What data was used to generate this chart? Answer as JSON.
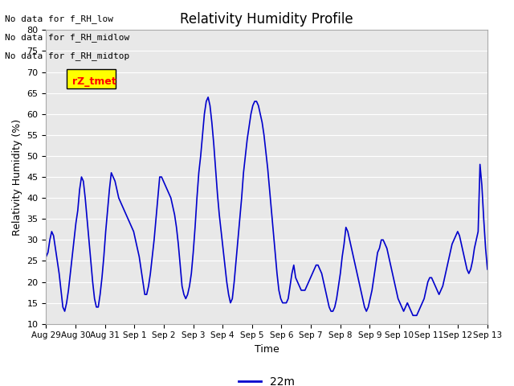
{
  "title": "Relativity Humidity Profile",
  "xlabel": "Time",
  "ylabel": "Relativity Humidity (%)",
  "ylim": [
    10,
    80
  ],
  "yticks": [
    10,
    15,
    20,
    25,
    30,
    35,
    40,
    45,
    50,
    55,
    60,
    65,
    70,
    75,
    80
  ],
  "line_color": "#0000CC",
  "line_width": 1.2,
  "legend_label": "22m",
  "no_data_labels": [
    "No data for f_RH_low",
    "No data for f_RH_midlow",
    "No data for f_RH_midtop"
  ],
  "legend_box_color": "#FFFF00",
  "legend_text_color": "#FF0000",
  "legend_box_label": "rZ_tmet",
  "xtick_labels": [
    "Aug 29",
    "Aug 30",
    "Aug 31",
    "Sep 1",
    "Sep 2",
    "Sep 3",
    "Sep 4",
    "Sep 5",
    "Sep 6",
    "Sep 7",
    "Sep 8",
    "Sep 9",
    "Sep 10",
    "Sep 11",
    "Sep 12",
    "Sep 13"
  ],
  "bg_color": "#E8E8E8",
  "grid_color": "#FFFFFF",
  "figure_bg": "#FFFFFF",
  "rh_values": [
    26,
    27,
    30,
    32,
    31,
    28,
    25,
    22,
    18,
    14,
    13,
    15,
    18,
    22,
    26,
    30,
    34,
    37,
    42,
    45,
    44,
    40,
    35,
    30,
    25,
    20,
    16,
    14,
    14,
    17,
    21,
    26,
    32,
    37,
    42,
    46,
    45,
    44,
    42,
    40,
    39,
    38,
    37,
    36,
    35,
    34,
    33,
    32,
    30,
    28,
    26,
    23,
    20,
    17,
    17,
    19,
    22,
    26,
    30,
    35,
    40,
    45,
    45,
    44,
    43,
    42,
    41,
    40,
    38,
    36,
    33,
    29,
    24,
    19,
    17,
    16,
    17,
    19,
    22,
    27,
    33,
    40,
    46,
    50,
    55,
    60,
    63,
    64,
    62,
    58,
    53,
    47,
    41,
    36,
    32,
    28,
    24,
    20,
    17,
    15,
    16,
    20,
    25,
    30,
    35,
    40,
    46,
    50,
    54,
    57,
    60,
    62,
    63,
    63,
    62,
    60,
    58,
    55,
    51,
    47,
    42,
    37,
    32,
    27,
    22,
    18,
    16,
    15,
    15,
    15,
    16,
    19,
    22,
    24,
    21,
    20,
    19,
    18,
    18,
    18,
    19,
    20,
    21,
    22,
    23,
    24,
    24,
    23,
    22,
    20,
    18,
    16,
    14,
    13,
    13,
    14,
    16,
    19,
    22,
    26,
    29,
    33,
    32,
    30,
    28,
    26,
    24,
    22,
    20,
    18,
    16,
    14,
    13,
    14,
    16,
    18,
    21,
    24,
    27,
    28,
    30,
    30,
    29,
    28,
    26,
    24,
    22,
    20,
    18,
    16,
    15,
    14,
    13,
    14,
    15,
    14,
    13,
    12,
    12,
    12,
    13,
    14,
    15,
    16,
    18,
    20,
    21,
    21,
    20,
    19,
    18,
    17,
    18,
    19,
    21,
    23,
    25,
    27,
    29,
    30,
    31,
    32,
    31,
    29,
    27,
    25,
    23,
    22,
    23,
    25,
    28,
    30,
    32,
    48,
    43,
    35,
    28,
    23
  ]
}
